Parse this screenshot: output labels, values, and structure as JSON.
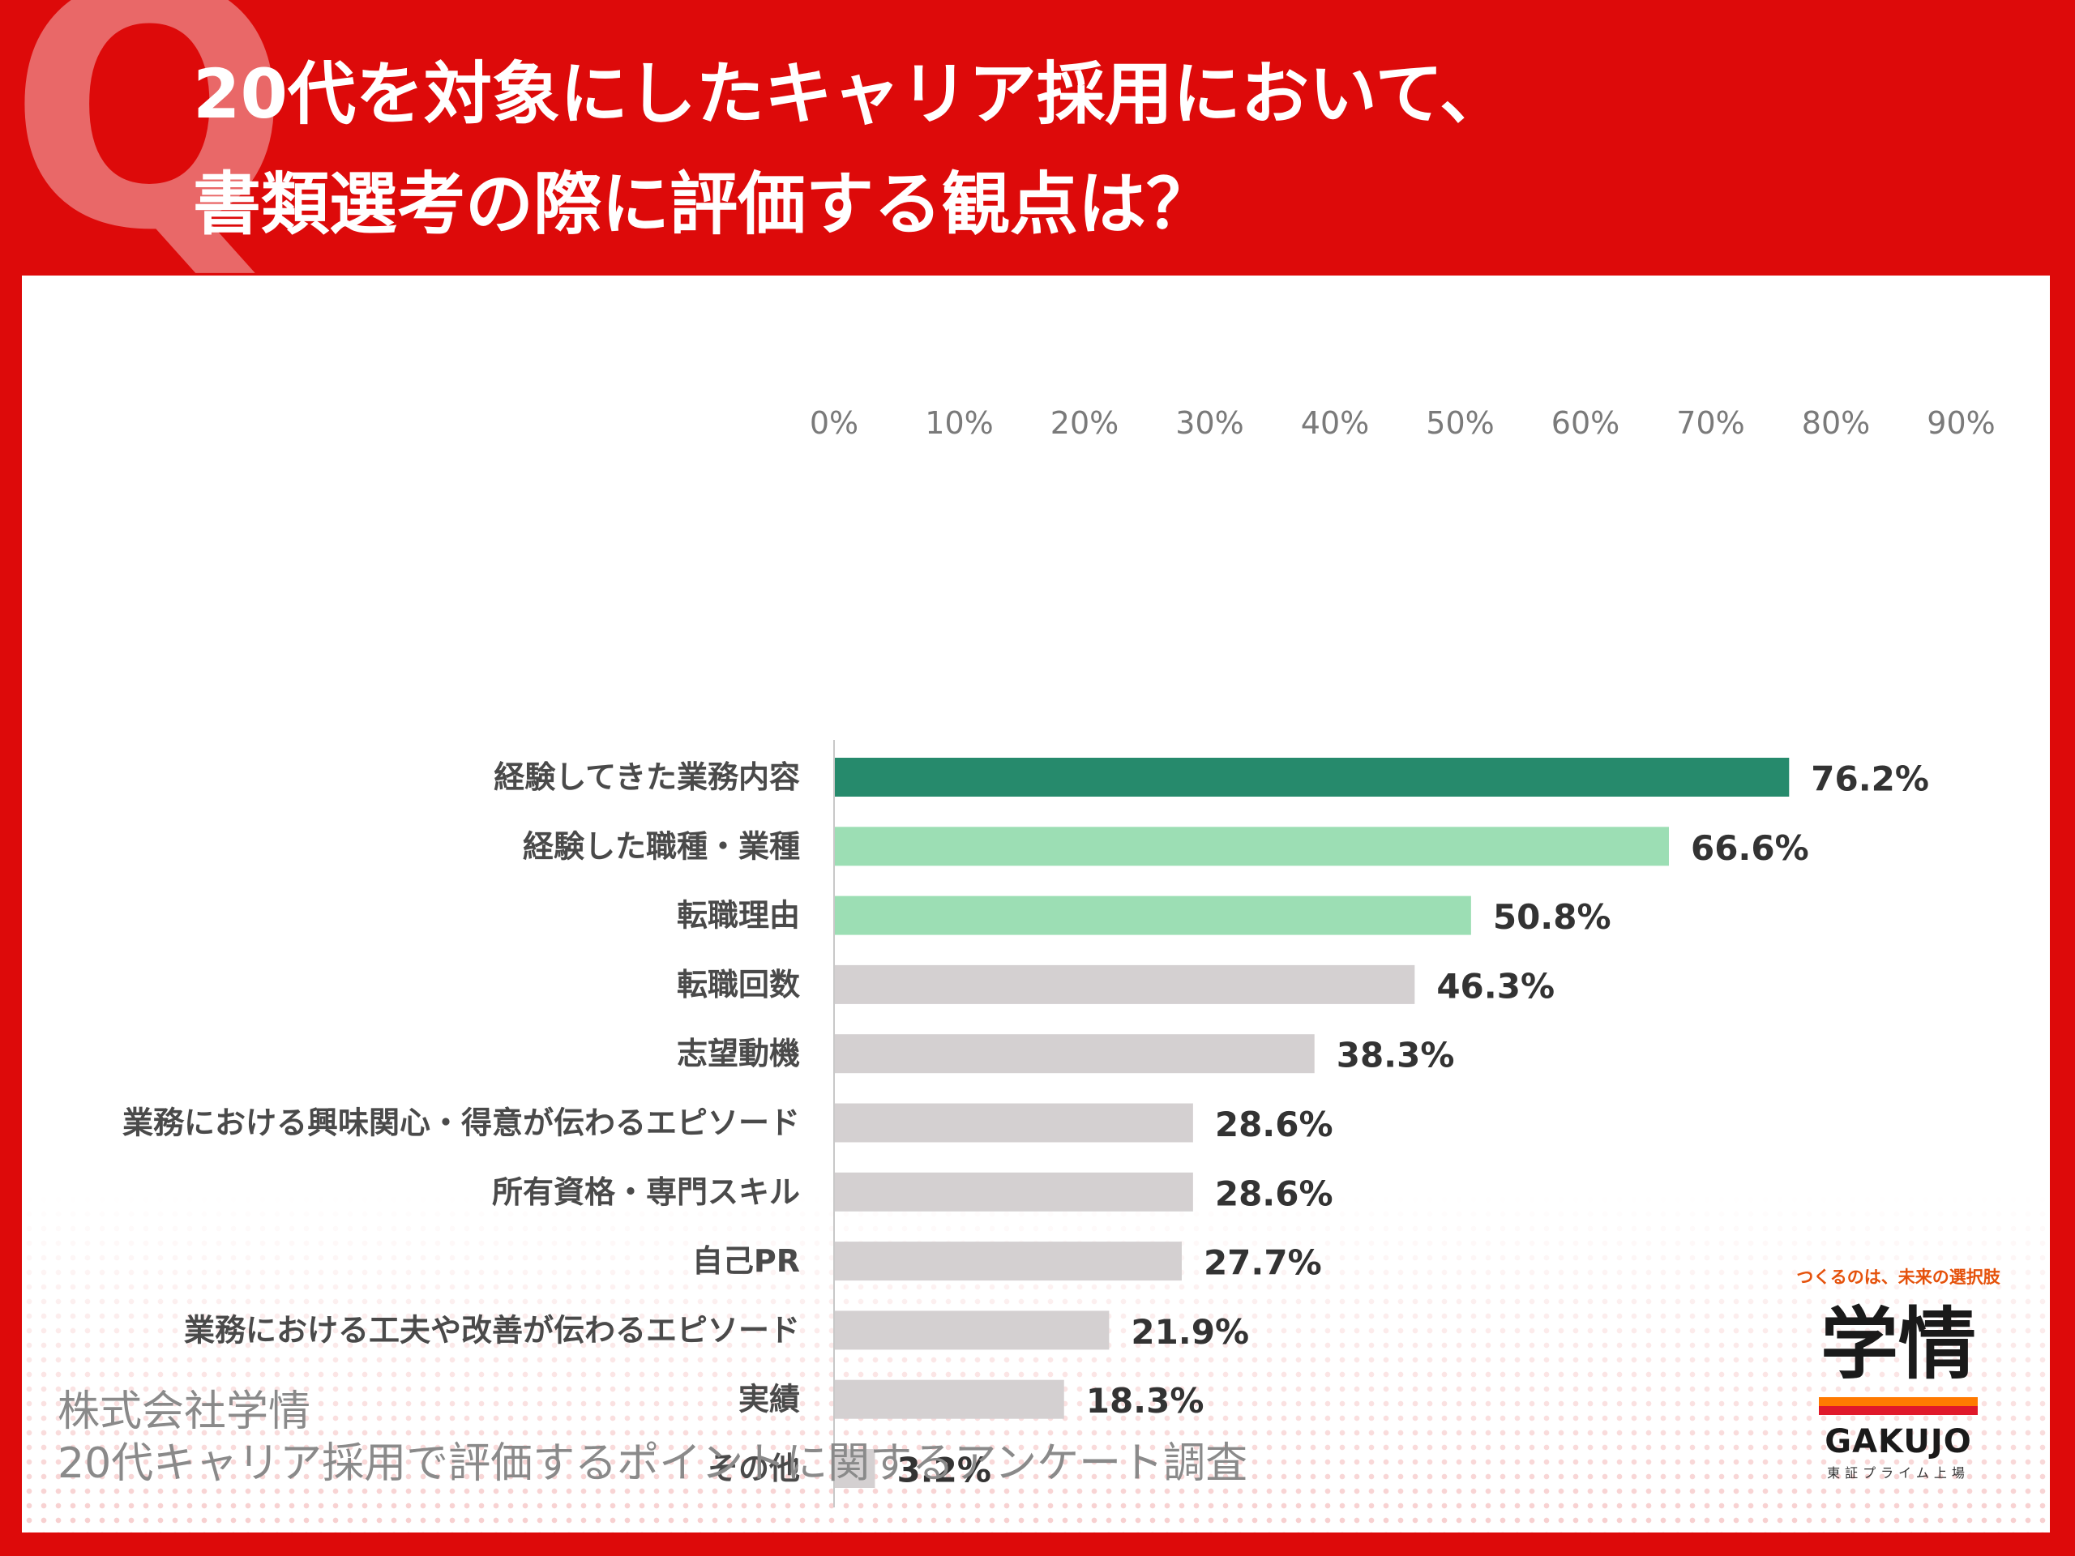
{
  "q_letter": "Q",
  "title": {
    "line1": "20代を対象にしたキャリア採用において、",
    "line2": "書類選考の際に評価する観点は？"
  },
  "chart_data": {
    "type": "bar",
    "orientation": "horizontal",
    "xlim": [
      0,
      90
    ],
    "x_ticks": [
      "0%",
      "10%",
      "20%",
      "30%",
      "40%",
      "50%",
      "60%",
      "70%",
      "80%",
      "90%"
    ],
    "grid": false,
    "categories": [
      "経験してきた業務内容",
      "経験した職種・業種",
      "転職理由",
      "転職回数",
      "志望動機",
      "業務における興味関心・得意が伝わるエピソード",
      "所有資格・専門スキル",
      "自己PR",
      "業務における工夫や改善が伝わるエピソード",
      "実績",
      "その他"
    ],
    "values": [
      76.2,
      66.6,
      50.8,
      46.3,
      38.3,
      28.6,
      28.6,
      27.7,
      21.9,
      18.3,
      3.2
    ],
    "value_labels": [
      "76.2%",
      "66.6%",
      "50.8%",
      "46.3%",
      "38.3%",
      "28.6%",
      "28.6%",
      "27.7%",
      "21.9%",
      "18.3%",
      "3.2%"
    ],
    "bar_colors": [
      "#268a6c",
      "#9cdeb4",
      "#9cdeb4",
      "#d4d0d1",
      "#d4d0d1",
      "#d4d0d1",
      "#d4d0d1",
      "#d4d0d1",
      "#d4d0d1",
      "#d4d0d1",
      "#d4d0d1"
    ]
  },
  "source": {
    "line1": "株式会社学情",
    "line2": "20代キャリア採用で評価するポイントに関するアンケート調査"
  },
  "logo": {
    "tagline": "つくるのは、未来の選択肢",
    "mark": "学情",
    "en": "GAKUJO",
    "sub": "東証プライム上場"
  },
  "colors": {
    "background_red": "#dd0a0a",
    "q_letter": "#e96868",
    "highlight_dark": "#268a6c",
    "highlight_light": "#9cdeb4",
    "bar_default": "#d4d0d1"
  }
}
